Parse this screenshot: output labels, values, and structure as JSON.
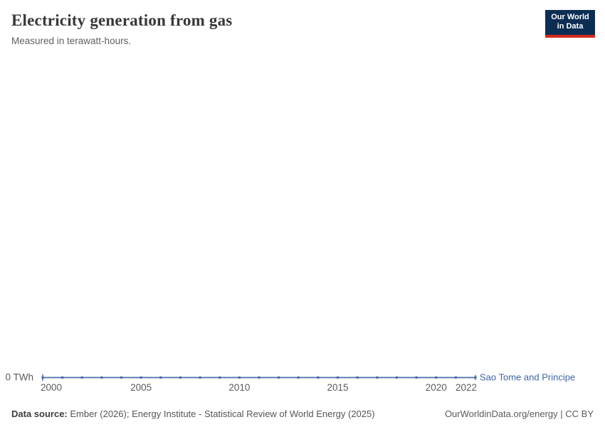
{
  "header": {
    "title": "Electricity generation from gas",
    "subtitle": "Measured in terawatt-hours.",
    "logo_line1": "Our World",
    "logo_line2": "in Data"
  },
  "chart_data": {
    "type": "line",
    "title": "Electricity generation from gas",
    "unit": "terawatt-hours",
    "xlim": [
      2000,
      2022
    ],
    "ylim": [
      0,
      0
    ],
    "y_axis_label": "0 TWh",
    "x_ticks": [
      2000,
      2005,
      2010,
      2015,
      2020,
      2022
    ],
    "grid": false,
    "legend_position": "end-of-line",
    "series": [
      {
        "name": "Sao Tome and Principe",
        "color": "#4c6ea9",
        "label_color": "#3d66a8",
        "x": [
          2000,
          2001,
          2002,
          2003,
          2004,
          2005,
          2006,
          2007,
          2008,
          2009,
          2010,
          2011,
          2012,
          2013,
          2014,
          2015,
          2016,
          2017,
          2018,
          2019,
          2020,
          2021,
          2022
        ],
        "values": [
          0,
          0,
          0,
          0,
          0,
          0,
          0,
          0,
          0,
          0,
          0,
          0,
          0,
          0,
          0,
          0,
          0,
          0,
          0,
          0,
          0,
          0,
          0
        ]
      }
    ]
  },
  "footer": {
    "datasource_label": "Data source:",
    "datasource_text": " Ember (2026); Energy Institute - Statistical Review of World Energy (2025)",
    "credit": "OurWorldinData.org/energy | CC BY"
  },
  "colors": {
    "line": "#4c6ea9",
    "series_label": "#3d66a8",
    "logo_background": "#0d2e53",
    "logo_underline": "#d42a20",
    "axis_text": "#5b5b5b",
    "title_text": "#383838"
  }
}
